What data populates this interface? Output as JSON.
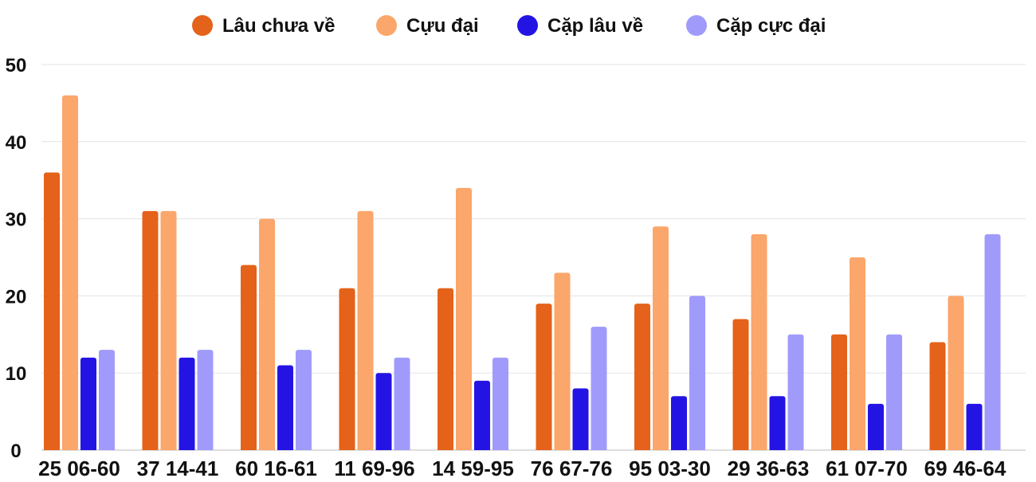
{
  "chart_data": {
    "type": "bar",
    "title": "",
    "xlabel": "",
    "ylabel": "",
    "ylim": [
      0,
      50
    ],
    "yticks": [
      0,
      10,
      20,
      30,
      40,
      50
    ],
    "grid": true,
    "legend_position": "top-center",
    "categories": [
      "25 06-60",
      "37 14-41",
      "60 16-61",
      "11 69-96",
      "14 59-95",
      "76 67-76",
      "95 03-30",
      "29 36-63",
      "61 07-70",
      "69 46-64"
    ],
    "series": [
      {
        "name": "Lâu chưa về",
        "color": "#E4621A",
        "values": [
          36,
          31,
          24,
          21,
          21,
          19,
          19,
          17,
          15,
          14
        ]
      },
      {
        "name": "Cựu đại",
        "color": "#FBA66B",
        "values": [
          46,
          31,
          30,
          31,
          34,
          23,
          29,
          28,
          25,
          20
        ]
      },
      {
        "name": "Cặp lâu về",
        "color": "#2414E4",
        "values": [
          12,
          12,
          11,
          10,
          9,
          8,
          7,
          7,
          6,
          6
        ]
      },
      {
        "name": "Cặp cực đại",
        "color": "#A09BFA",
        "values": [
          13,
          13,
          13,
          12,
          12,
          16,
          20,
          15,
          15,
          28
        ]
      }
    ]
  }
}
